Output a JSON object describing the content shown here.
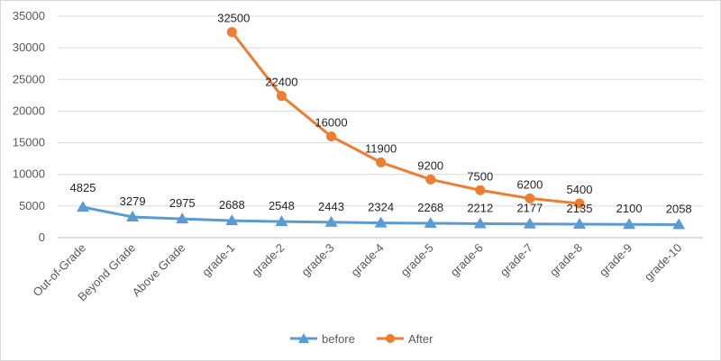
{
  "chart_data": {
    "type": "line",
    "categories": [
      "Out-of-Grade",
      "Beyond Grade",
      "Above Grade",
      "grade-1",
      "grade-2",
      "grade-3",
      "grade-4",
      "grade-5",
      "grade-6",
      "grade-7",
      "grade-8",
      "grade-9",
      "grade-10"
    ],
    "ylim": [
      0,
      35000
    ],
    "yticks": [
      0,
      5000,
      10000,
      15000,
      20000,
      25000,
      30000,
      35000
    ],
    "grid": true,
    "legend_position": "bottom",
    "series": [
      {
        "name": "before",
        "color": "#5b9bd5",
        "marker": "triangle",
        "values": [
          4825,
          3279,
          2975,
          2688,
          2548,
          2443,
          2324,
          2268,
          2212,
          2177,
          2135,
          2100,
          2058
        ]
      },
      {
        "name": "After",
        "color": "#ed7d31",
        "marker": "circle",
        "values": [
          null,
          null,
          null,
          32500,
          22400,
          16000,
          11900,
          9200,
          7500,
          6200,
          5400,
          null,
          null
        ]
      }
    ]
  }
}
